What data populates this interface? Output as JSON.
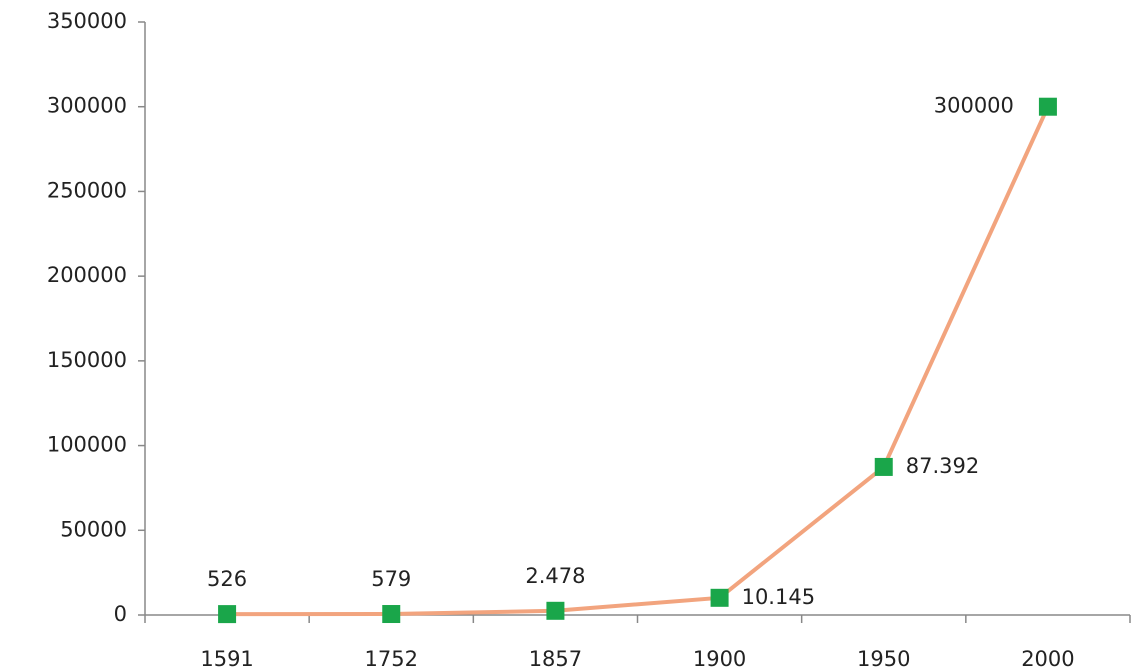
{
  "chart_data": {
    "type": "line",
    "categories": [
      "1591",
      "1752",
      "1857",
      "1900",
      "1950",
      "2000"
    ],
    "series": [
      {
        "name": null,
        "color": "#f2a47e",
        "marker_color": "#1aa64a",
        "values": [
          526,
          579,
          2478,
          10145,
          87392,
          300000
        ],
        "value_labels": [
          "526",
          "579",
          "2.478",
          "10.145",
          "87.392",
          "300000"
        ]
      }
    ],
    "ylim": [
      0,
      350000
    ],
    "yticks": [
      0,
      50000,
      100000,
      150000,
      200000,
      250000,
      300000,
      350000
    ],
    "grid": false
  }
}
